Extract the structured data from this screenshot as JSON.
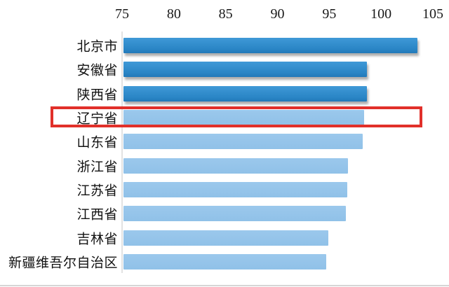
{
  "chart_data": {
    "type": "bar",
    "orientation": "horizontal",
    "title": "",
    "categories": [
      "北京市",
      "安徽省",
      "陕西省",
      "辽宁省",
      "山东省",
      "浙江省",
      "江苏省",
      "江西省",
      "吉林省",
      "新疆维吾尔自治区"
    ],
    "values": [
      103.4,
      98.5,
      98.5,
      98.2,
      98.1,
      96.7,
      96.6,
      96.5,
      94.8,
      94.6
    ],
    "xlim": [
      75,
      105
    ],
    "xticks": [
      "75",
      "80",
      "85",
      "90",
      "95",
      "100",
      "105"
    ],
    "x_axis_position": "top",
    "grid": false,
    "legend": "none",
    "colors": {
      "bar_dark": "#2e8cc9",
      "bar_light": "#93c4ea",
      "axis_line": "#e2e2e2",
      "highlight_red": "#e1302a"
    },
    "dark_bar_count": 3,
    "highlight": {
      "category": "辽宁省",
      "index": 3
    }
  }
}
